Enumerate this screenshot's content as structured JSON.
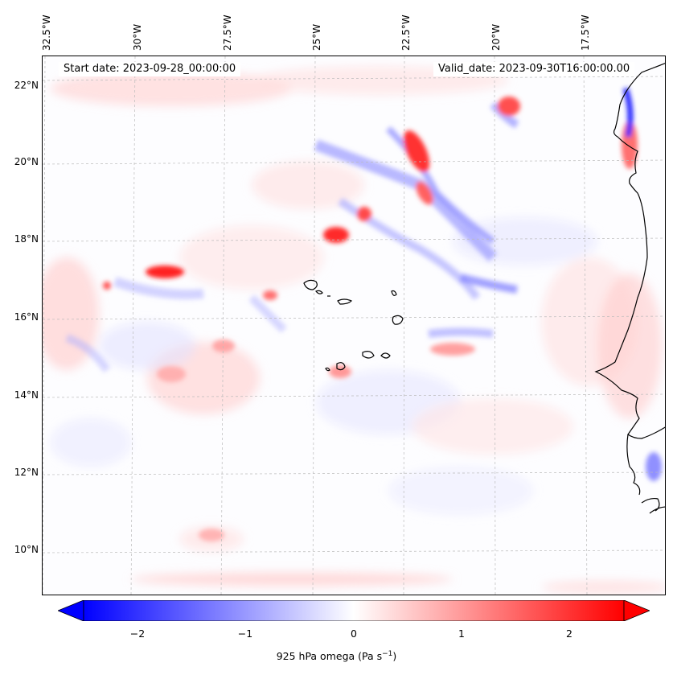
{
  "header": {
    "start_date": "Start date: 2023-09-28_00:00:00",
    "valid_date": "Valid_date: 2023-09-30T16:00:00.00"
  },
  "axes": {
    "lon_labels": [
      "32.5°W",
      "30°W",
      "27.5°W",
      "25°W",
      "22.5°W",
      "20°W",
      "17.5°W"
    ],
    "lat_labels": [
      "22°N",
      "20°N",
      "18°N",
      "16°N",
      "14°N",
      "12°N",
      "10°N"
    ]
  },
  "colorbar": {
    "ticks": [
      "−2",
      "−1",
      "0",
      "1",
      "2"
    ],
    "label_prefix": "925 hPa omega (Pa s",
    "label_exp": "−1",
    "label_suffix": ")",
    "min": -2.5,
    "max": 2.5,
    "low_color": "#0000ff",
    "mid_color": "#ffffff",
    "high_color": "#ff0000"
  },
  "colors": {
    "coast": "#000000",
    "grid": "#bbbbbb"
  }
}
